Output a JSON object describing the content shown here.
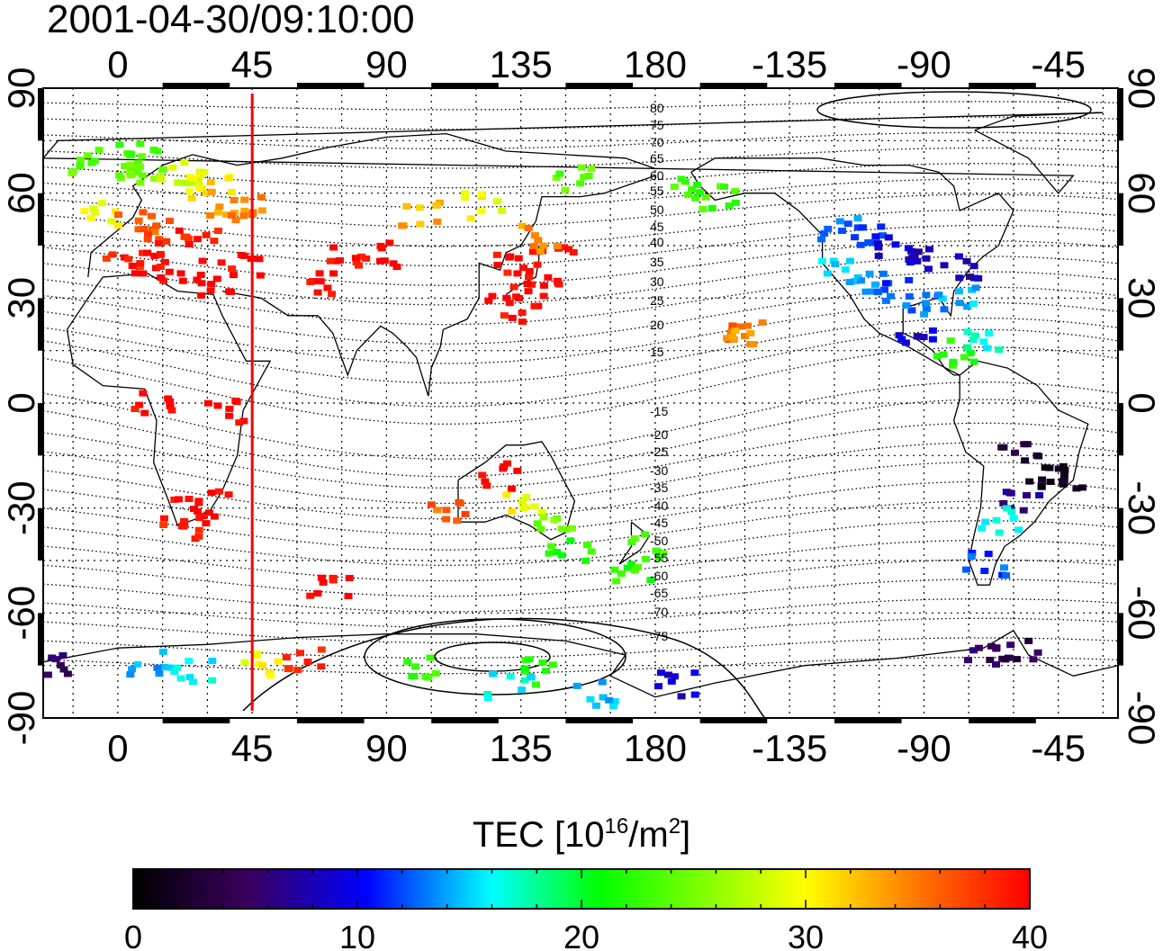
{
  "title": "2001-04-30/09:10:00",
  "axes": {
    "lon_ticks": [
      "0",
      "45",
      "90",
      "135",
      "180",
      "-135",
      "-90",
      "-45"
    ],
    "lat_ticks": [
      "90",
      "60",
      "30",
      "0",
      "-30",
      "-60",
      "-90"
    ]
  },
  "contour_labels": [
    "80",
    "75",
    "70",
    "65",
    "60",
    "55",
    "50",
    "45",
    "40",
    "35",
    "30",
    "25",
    "20",
    "15",
    "-15",
    "-20",
    "-25",
    "-30",
    "-35",
    "-40",
    "-45",
    "-50",
    "-55",
    "-60",
    "-65",
    "-70",
    "-75"
  ],
  "colorbar": {
    "label_prefix": "TEC  [10",
    "label_exp1": "16",
    "label_mid": "/m",
    "label_exp2": "2",
    "label_suffix": "]",
    "tick_labels": [
      "0",
      "10",
      "20",
      "30",
      "40"
    ],
    "min": 0,
    "max": 40
  },
  "colors": {
    "scale": [
      "#000000",
      "#3a0060",
      "#0000ff",
      "#00ffff",
      "#00ff00",
      "#ffff00",
      "#ff0000"
    ],
    "marker_line": "#ff0000"
  },
  "marker_longitude": 45,
  "chart_data": {
    "type": "heatmap",
    "variable": "TEC",
    "x_axis": "longitude",
    "y_axis": "latitude",
    "xlim": [
      -25,
      335
    ],
    "ylim": [
      -90,
      90
    ],
    "points": [
      {
        "lon": -10,
        "lat": 70,
        "tec": 24
      },
      {
        "lon": 0,
        "lat": 66,
        "tec": 25
      },
      {
        "lon": 5,
        "lat": 72,
        "tec": 23
      },
      {
        "lon": 10,
        "lat": 68,
        "tec": 25
      },
      {
        "lon": 18,
        "lat": 66,
        "tec": 28
      },
      {
        "lon": 25,
        "lat": 64,
        "tec": 29
      },
      {
        "lon": 30,
        "lat": 62,
        "tec": 31
      },
      {
        "lon": 35,
        "lat": 58,
        "tec": 34
      },
      {
        "lon": 40,
        "lat": 56,
        "tec": 35
      },
      {
        "lon": -5,
        "lat": 55,
        "tec": 30
      },
      {
        "lon": 5,
        "lat": 52,
        "tec": 36
      },
      {
        "lon": 15,
        "lat": 50,
        "tec": 38
      },
      {
        "lon": 25,
        "lat": 48,
        "tec": 39
      },
      {
        "lon": 0,
        "lat": 42,
        "tec": 39
      },
      {
        "lon": 10,
        "lat": 40,
        "tec": 40
      },
      {
        "lon": 20,
        "lat": 38,
        "tec": 40
      },
      {
        "lon": 30,
        "lat": 35,
        "tec": 40
      },
      {
        "lon": 40,
        "lat": 40,
        "tec": 40
      },
      {
        "lon": 75,
        "lat": 45,
        "tec": 40
      },
      {
        "lon": 85,
        "lat": 43,
        "tec": 40
      },
      {
        "lon": 70,
        "lat": 35,
        "tec": 40
      },
      {
        "lon": 130,
        "lat": 40,
        "tec": 40
      },
      {
        "lon": 140,
        "lat": 38,
        "tec": 40
      },
      {
        "lon": 135,
        "lat": 32,
        "tec": 40
      },
      {
        "lon": 145,
        "lat": 44,
        "tec": 40
      },
      {
        "lon": 140,
        "lat": 48,
        "tec": 34
      },
      {
        "lon": 128,
        "lat": 28,
        "tec": 40
      },
      {
        "lon": 10,
        "lat": 0,
        "tec": 40
      },
      {
        "lon": 35,
        "lat": -2,
        "tec": 40
      },
      {
        "lon": 25,
        "lat": -30,
        "tec": 40
      },
      {
        "lon": 30,
        "lat": -28,
        "tec": 40
      },
      {
        "lon": 20,
        "lat": -35,
        "tec": 39
      },
      {
        "lon": 70,
        "lat": -52,
        "tec": 40
      },
      {
        "lon": 125,
        "lat": -20,
        "tec": 40
      },
      {
        "lon": 135,
        "lat": -28,
        "tec": 30
      },
      {
        "lon": 145,
        "lat": -35,
        "tec": 25
      },
      {
        "lon": 150,
        "lat": -42,
        "tec": 22
      },
      {
        "lon": 175,
        "lat": -40,
        "tec": 23
      },
      {
        "lon": 170,
        "lat": -48,
        "tec": 22
      },
      {
        "lon": 110,
        "lat": -30,
        "tec": 36
      },
      {
        "lon": 100,
        "lat": 55,
        "tec": 33
      },
      {
        "lon": 120,
        "lat": 57,
        "tec": 30
      },
      {
        "lon": 150,
        "lat": 65,
        "tec": 24
      },
      {
        "lon": -170,
        "lat": 62,
        "tec": 23
      },
      {
        "lon": -160,
        "lat": 60,
        "tec": 23
      },
      {
        "lon": -150,
        "lat": 22,
        "tec": 36
      },
      {
        "lon": -155,
        "lat": 20,
        "tec": 34
      },
      {
        "lon": -120,
        "lat": 50,
        "tec": 13
      },
      {
        "lon": -110,
        "lat": 48,
        "tec": 11
      },
      {
        "lon": -100,
        "lat": 45,
        "tec": 9
      },
      {
        "lon": -90,
        "lat": 42,
        "tec": 8
      },
      {
        "lon": -80,
        "lat": 40,
        "tec": 8
      },
      {
        "lon": -120,
        "lat": 38,
        "tec": 15
      },
      {
        "lon": -110,
        "lat": 35,
        "tec": 14
      },
      {
        "lon": -100,
        "lat": 33,
        "tec": 12
      },
      {
        "lon": -90,
        "lat": 30,
        "tec": 13
      },
      {
        "lon": -80,
        "lat": 30,
        "tec": 15
      },
      {
        "lon": -95,
        "lat": 20,
        "tec": 9
      },
      {
        "lon": -80,
        "lat": 15,
        "tec": 22
      },
      {
        "lon": -70,
        "lat": 18,
        "tec": 17
      },
      {
        "lon": -60,
        "lat": -12,
        "tec": 3
      },
      {
        "lon": -50,
        "lat": -20,
        "tec": 1
      },
      {
        "lon": -45,
        "lat": -20,
        "tec": 2
      },
      {
        "lon": -60,
        "lat": -28,
        "tec": 7
      },
      {
        "lon": -65,
        "lat": -33,
        "tec": 17
      },
      {
        "lon": -70,
        "lat": -45,
        "tec": 12
      },
      {
        "lon": -70,
        "lat": -70,
        "tec": 5
      },
      {
        "lon": -60,
        "lat": -70,
        "tec": 4
      },
      {
        "lon": -20,
        "lat": -74,
        "tec": 5
      },
      {
        "lon": 10,
        "lat": -74,
        "tec": 14
      },
      {
        "lon": 25,
        "lat": -76,
        "tec": 16
      },
      {
        "lon": 45,
        "lat": -74,
        "tec": 30
      },
      {
        "lon": 60,
        "lat": -72,
        "tec": 38
      },
      {
        "lon": 100,
        "lat": -74,
        "tec": 23
      },
      {
        "lon": 130,
        "lat": -80,
        "tec": 16
      },
      {
        "lon": 140,
        "lat": -76,
        "tec": 22
      },
      {
        "lon": 160,
        "lat": -82,
        "tec": 15
      },
      {
        "lon": 185,
        "lat": -80,
        "tec": 9
      }
    ]
  }
}
